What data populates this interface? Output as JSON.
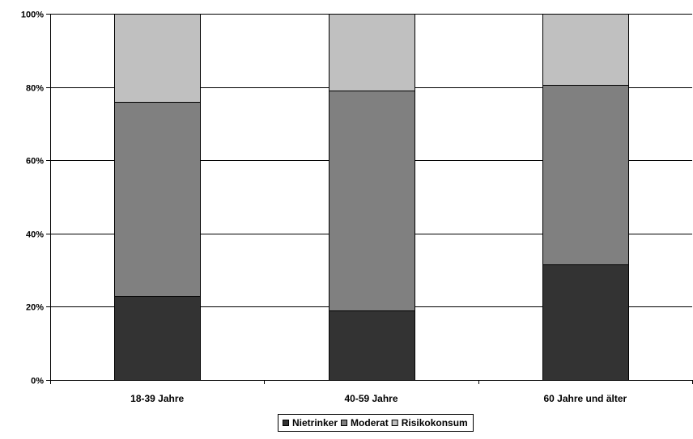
{
  "chart_data": {
    "type": "bar",
    "stacked": true,
    "percent_stacked": true,
    "categories": [
      "18-39 Jahre",
      "40-59 Jahre",
      "60 Jahre und älter"
    ],
    "series": [
      {
        "name": "Nietrinker",
        "values": [
          23,
          19,
          31.5
        ],
        "color": "#333333"
      },
      {
        "name": "Moderat",
        "values": [
          53,
          60,
          49
        ],
        "color": "#808080"
      },
      {
        "name": "Risikokonsum",
        "values": [
          24,
          21,
          19.5
        ],
        "color": "#c0c0c0"
      }
    ],
    "yticks": [
      "0%",
      "20%",
      "40%",
      "60%",
      "80%",
      "100%"
    ],
    "ylim": [
      0,
      100
    ],
    "grid": true,
    "legend_position": "bottom"
  }
}
